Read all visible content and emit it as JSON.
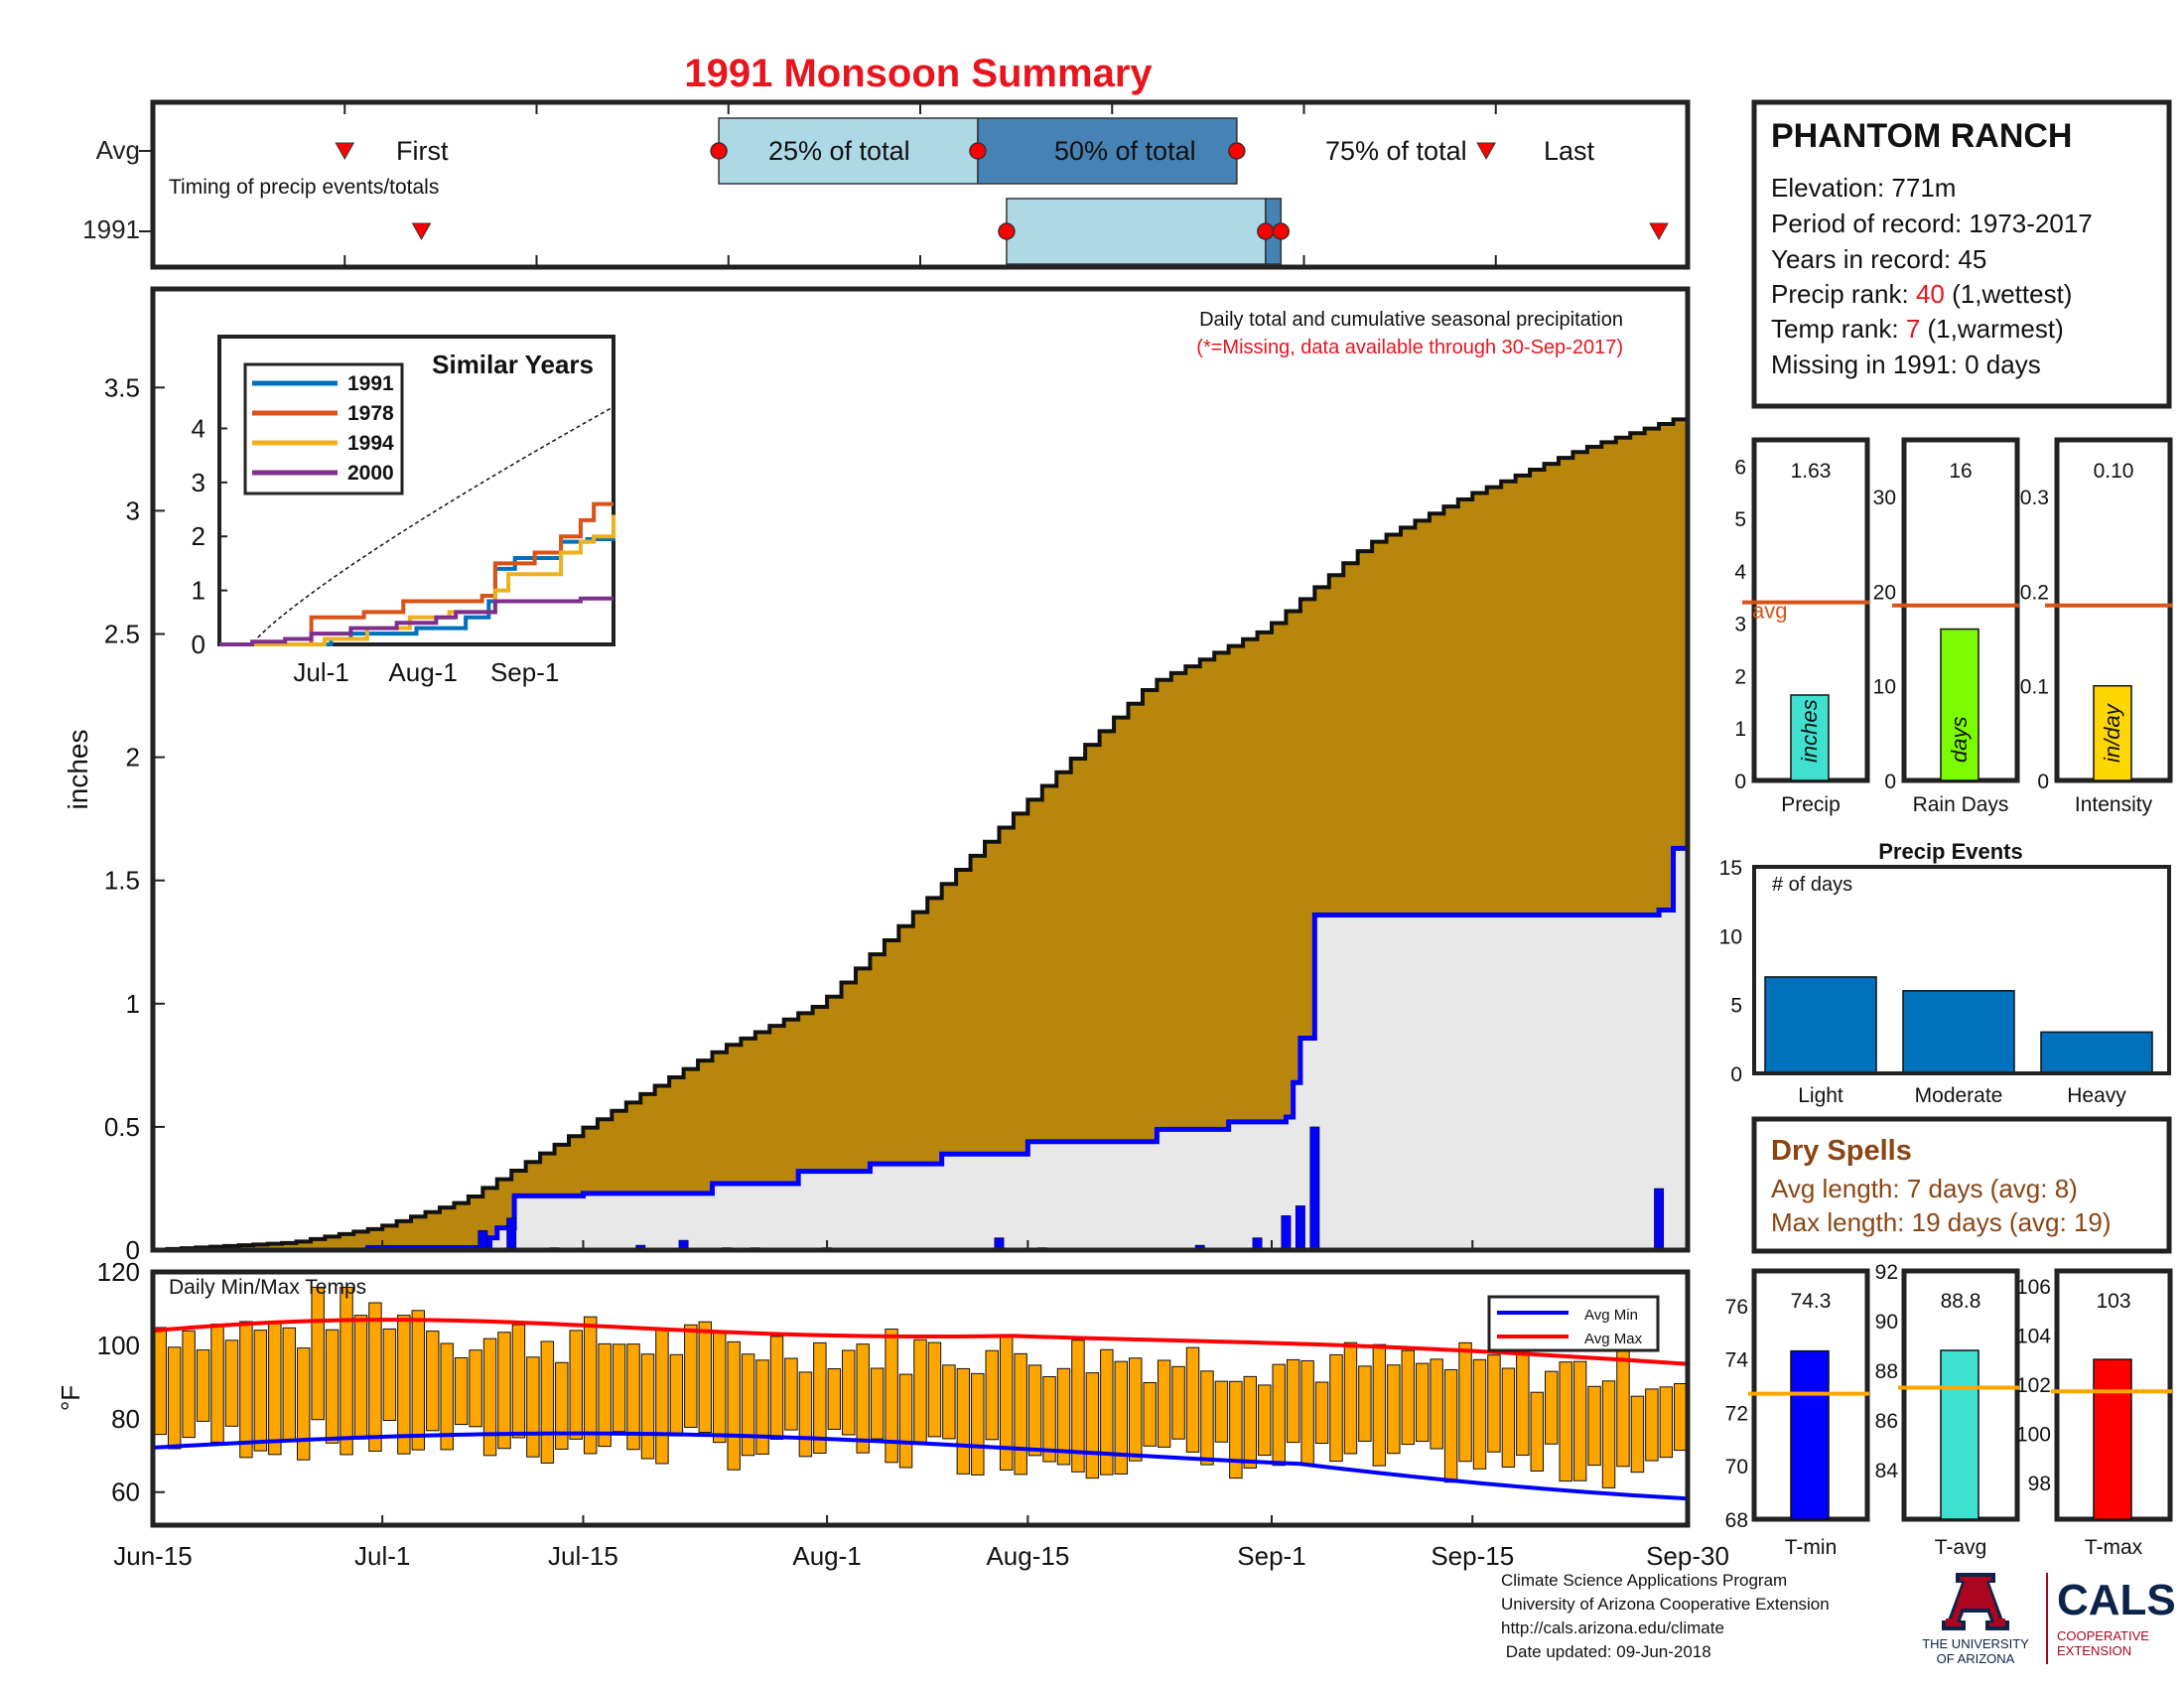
{
  "title": "1991 Monsoon Summary",
  "timing": {
    "note": "Timing of precip events/totals",
    "rows": [
      "Avg",
      "1991"
    ],
    "labels": {
      "first": "First",
      "p25": "25% of total",
      "p50": "50% of total",
      "p75": "75% of total",
      "last": "Last"
    },
    "avg": {
      "first": 1.0,
      "p25": 2.95,
      "p50": 4.3,
      "p75": 5.65,
      "last": 6.95
    },
    "y1991": {
      "first": 1.4,
      "p25": 4.45,
      "p50": 5.8,
      "p75": 5.88,
      "last": 7.85
    }
  },
  "station": {
    "name": "PHANTOM RANCH",
    "elevation": "Elevation: 771m",
    "period": "Period of record: 1973-2017",
    "years": "Years in record: 45",
    "precip_rank_label": "Precip rank: ",
    "precip_rank": "40",
    "precip_rank_note": " (1,wettest)",
    "temp_rank_label": "Temp rank: ",
    "temp_rank": "7",
    "temp_rank_note": " (1,warmest)",
    "missing": "Missing in 1991: 0 days"
  },
  "main_chart": {
    "note1": "Daily total and cumulative seasonal precipitation",
    "note2": "(*=Missing, data available through 30-Sep-2017)",
    "ylabel": "inches",
    "ylim": [
      0,
      3.9
    ],
    "yticks": [
      "0",
      "0.5",
      "1",
      "1.5",
      "2",
      "2.5",
      "3",
      "3.5"
    ],
    "xticks": [
      "Jun-15",
      "Jul-1",
      "Jul-15",
      "Aug-1",
      "Aug-15",
      "Sep-1",
      "Sep-15",
      "Sep-30"
    ],
    "colors": {
      "avg_fill": "#b8860b",
      "year_fill": "#e8e8e8",
      "year_line": "#0000ff",
      "daily_bar": "#0000ff"
    }
  },
  "inset": {
    "title": "Similar Years",
    "legend": [
      "1991",
      "1978",
      "1994",
      "2000"
    ],
    "colors": [
      "#0072bd",
      "#d95319",
      "#edb120",
      "#7e2f8e"
    ],
    "yticks": [
      "0",
      "1",
      "2",
      "3",
      "4"
    ],
    "xticks": [
      "Jul-1",
      "Aug-1",
      "Sep-1"
    ]
  },
  "summary_bars": [
    {
      "label": "Precip",
      "value": "1.63",
      "unit": "inches",
      "ymax": 6.5,
      "yticks": [
        "0",
        "1",
        "2",
        "3",
        "4",
        "5",
        "6"
      ],
      "avg": 3.4,
      "color": "#40e0d0",
      "avg_label": "avg",
      "v": 1.63
    },
    {
      "label": "Rain Days",
      "value": "16",
      "unit": "days",
      "ymax": 36,
      "yticks": [
        "0",
        "10",
        "20",
        "30"
      ],
      "avg": 18.5,
      "color": "#7cfc00",
      "v": 16
    },
    {
      "label": "Intensity",
      "value": "0.10",
      "unit": "in/day",
      "ymax": 0.36,
      "yticks": [
        "0",
        "0.1",
        "0.2",
        "0.3"
      ],
      "avg": 0.185,
      "color": "#ffd700",
      "v": 0.1
    }
  ],
  "events": {
    "title": "Precip Events",
    "ylabel_note": "# of days",
    "categories": [
      "Light",
      "Moderate",
      "Heavy"
    ],
    "values": [
      7,
      6,
      3
    ],
    "yticks": [
      "0",
      "5",
      "10",
      "15"
    ],
    "color": "#0072bd"
  },
  "dry_spells": {
    "title": "Dry Spells",
    "avg": "Avg length: 7 days (avg: 8)",
    "max": "Max length: 19 days (avg: 19)"
  },
  "temps": {
    "title": "Daily Min/Max Temps",
    "ylabel": "°F",
    "yticks": [
      "60",
      "80",
      "100",
      "120"
    ],
    "legend": [
      "Avg Min",
      "Avg Max"
    ],
    "bar_color": "#ffa500"
  },
  "temp_bars": [
    {
      "label": "T-min",
      "value": "74.3",
      "v": 74.3,
      "ymin": 68,
      "ymax": 77.3,
      "yticks": [
        "68",
        "70",
        "72",
        "74",
        "76"
      ],
      "avg": 72.7,
      "color": "#0000ff"
    },
    {
      "label": "T-avg",
      "value": "88.8",
      "v": 88.8,
      "ymin": 82,
      "ymax": 92,
      "yticks": [
        "84",
        "86",
        "88",
        "90",
        "92"
      ],
      "avg": 87.3,
      "color": "#40e0d0"
    },
    {
      "label": "T-max",
      "value": "103",
      "v": 103,
      "ymin": 96.5,
      "ymax": 106.6,
      "yticks": [
        "98",
        "100",
        "102",
        "104",
        "106"
      ],
      "avg": 101.7,
      "color": "#ff0000"
    }
  ],
  "chart_data": [
    {
      "type": "area",
      "title": "Daily total and cumulative seasonal precipitation",
      "ylabel": "inches",
      "ylim": [
        0,
        3.9
      ],
      "series": [
        {
          "x": [
            "Jun-15",
            "Jul-1",
            "Jul-15",
            "Aug-1",
            "Aug-15",
            "Sep-1",
            "Sep-15",
            "Sep-30"
          ],
          "values": [
            0,
            0.1,
            0.45,
            0.95,
            1.85,
            2.5,
            3.05,
            3.38
          ]
        },
        {
          "name": "1991",
          "x": [
            "Jun-15",
            "Jul-15",
            "Jul-17",
            "Aug-1",
            "Aug-15",
            "Sep-1",
            "Sep-5",
            "Sep-7",
            "Sep-28",
            "Sep-30"
          ],
          "values": [
            0,
            0.05,
            0.22,
            0.28,
            0.38,
            0.52,
            0.86,
            1.36,
            1.36,
            1.63
          ]
        }
      ]
    },
    {
      "type": "bar",
      "title": "Precip Events",
      "categories": [
        "Light",
        "Moderate",
        "Heavy"
      ],
      "values": [
        7,
        6,
        3
      ]
    }
  ]
}
